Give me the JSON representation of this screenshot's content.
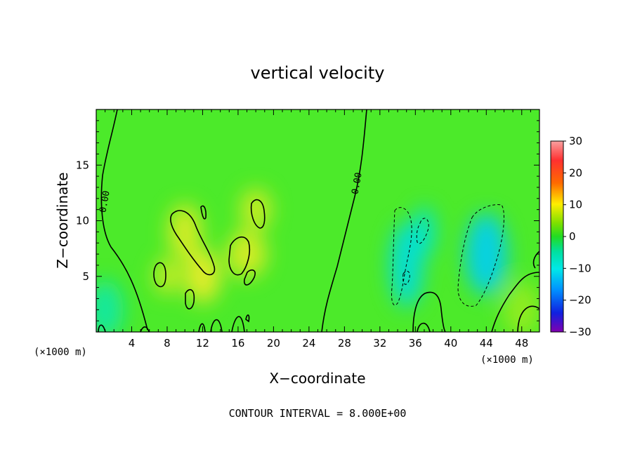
{
  "chart_data": {
    "type": "heatmap",
    "title": "vertical velocity",
    "xlabel": "X−coordinate",
    "ylabel": "Z−coordinate",
    "x_unit_left": "(×1000 m)",
    "x_unit_right": "(×1000 m)",
    "footer": "CONTOUR INTERVAL = 8.000E+00",
    "xlim": [
      0,
      50
    ],
    "ylim": [
      0,
      20
    ],
    "x_ticks": [
      4,
      8,
      12,
      16,
      20,
      24,
      28,
      32,
      36,
      40,
      44,
      48
    ],
    "x_tick_labels": [
      "4",
      "8",
      "12",
      "16",
      "20",
      "24",
      "28",
      "32",
      "36",
      "40",
      "44",
      "48"
    ],
    "y_ticks": [
      5,
      10,
      15
    ],
    "y_tick_labels": [
      "5",
      "10",
      "15"
    ],
    "colorbar": {
      "min": -30,
      "max": 30,
      "ticks": [
        30,
        20,
        10,
        0,
        -10,
        -20,
        -30
      ],
      "tick_labels": [
        "30",
        "20",
        "10",
        "0",
        "−10",
        "−20",
        "−30"
      ]
    },
    "contour_labels": [
      "0.00",
      "0.00"
    ],
    "features": [
      {
        "x": 12,
        "z": 5,
        "value": 10
      },
      {
        "x": 17,
        "z": 7,
        "value": 9
      },
      {
        "x": 10,
        "z": 9,
        "value": 9
      },
      {
        "x": 18,
        "z": 11,
        "value": 8
      },
      {
        "x": 8,
        "z": 5,
        "value": 8
      },
      {
        "x": 44,
        "z": 7,
        "value": -9
      },
      {
        "x": 35,
        "z": 6,
        "value": -7
      },
      {
        "x": 37,
        "z": 9,
        "value": -6
      },
      {
        "x": 1,
        "z": 2,
        "value": -4
      },
      {
        "x": 48,
        "z": 2,
        "value": 4
      }
    ]
  }
}
